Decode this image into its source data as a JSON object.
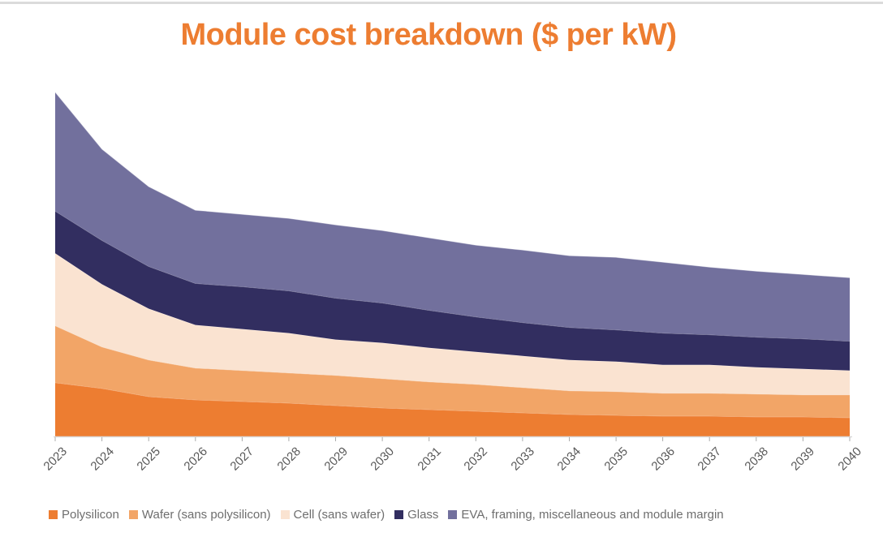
{
  "window": {
    "top_border_color": "#dbdbdb"
  },
  "chart": {
    "title": "Module cost breakdown ($ per kW)",
    "title_color": "#ED7D31",
    "axis": {
      "line_color": "#D9D9D9",
      "tick_color": "#ACACAC",
      "label_color": "#595959"
    },
    "legend": {
      "position": "bottom",
      "text_color": "#6e6e6e"
    }
  },
  "chart_data": {
    "type": "area",
    "stacked": true,
    "title": "Module cost breakdown ($ per kW)",
    "xlabel": "",
    "ylabel": "",
    "units": "$ per kW",
    "grid": false,
    "y_axis_shown": false,
    "legend_position": "bottom",
    "ylim": [
      0,
      262
    ],
    "categories": [
      "2023",
      "2024",
      "2025",
      "2026",
      "2027",
      "2028",
      "2029",
      "2030",
      "2031",
      "2032",
      "2033",
      "2034",
      "2035",
      "2036",
      "2037",
      "2038",
      "2039",
      "2040"
    ],
    "series": [
      {
        "name": "Polysilicon",
        "color": "#ED7D31",
        "values": [
          39.6,
          35.4,
          29.4,
          27.0,
          25.8,
          24.6,
          22.8,
          21.0,
          19.8,
          18.6,
          17.4,
          16.2,
          15.6,
          15.0,
          15.0,
          14.4,
          14.4,
          13.8
        ]
      },
      {
        "name": "Wafer (sans polysilicon)",
        "color": "#F2A567",
        "values": [
          42.0,
          30.6,
          27.0,
          23.4,
          22.8,
          22.2,
          22.2,
          21.6,
          20.4,
          19.8,
          18.6,
          17.4,
          17.4,
          16.8,
          16.8,
          16.8,
          16.2,
          16.8
        ]
      },
      {
        "name": "Cell (sans wafer)",
        "color": "#FAE3D1",
        "values": [
          53.4,
          46.2,
          37.8,
          31.8,
          30.6,
          29.4,
          26.4,
          26.4,
          25.2,
          24.0,
          23.4,
          22.8,
          22.2,
          21.0,
          21.0,
          19.8,
          19.2,
          18.0
        ]
      },
      {
        "name": "Glass",
        "color": "#322E60",
        "values": [
          31.2,
          32.4,
          31.2,
          30.6,
          31.2,
          31.2,
          30.6,
          29.4,
          27.6,
          25.8,
          24.6,
          24.0,
          23.4,
          23.4,
          22.2,
          22.2,
          22.2,
          21.6
        ]
      },
      {
        "name": "EVA, framing, miscellaneous and module margin",
        "color": "#72709D",
        "values": [
          87.6,
          67.2,
          58.8,
          54.0,
          53.4,
          53.4,
          54.0,
          53.4,
          53.4,
          52.8,
          53.4,
          52.8,
          53.4,
          52.2,
          49.8,
          48.6,
          47.4,
          46.8
        ]
      }
    ]
  }
}
